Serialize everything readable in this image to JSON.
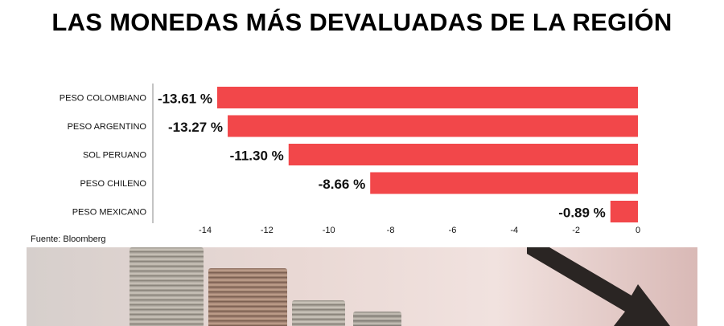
{
  "title": "LAS MONEDAS MÁS DEVALUADAS DE LA REGIÓN",
  "source": "Fuente: Bloomberg",
  "colors": {
    "bar": "#f2474a",
    "text": "#111111"
  },
  "icons": {
    "photo": "coin-stacks-photo",
    "arrow": "down-trend-arrow-icon"
  },
  "chart_data": {
    "type": "bar",
    "orientation": "horizontal",
    "categories": [
      "PESO COLOMBIANO",
      "PESO ARGENTINO",
      "SOL PERUANO",
      "PESO CHILENO",
      "PESO MEXICANO"
    ],
    "values": [
      -13.61,
      -13.27,
      -11.3,
      -8.66,
      -0.89
    ],
    "value_labels": [
      "-13.61 %",
      "-13.27 %",
      "-11.30 %",
      "-8.66 %",
      "-0.89 %"
    ],
    "xlim": [
      -14,
      0
    ],
    "xticks": [
      -14,
      -12,
      -10,
      -8,
      -6,
      -4,
      -2,
      0
    ],
    "grid": false,
    "legend": "none"
  }
}
